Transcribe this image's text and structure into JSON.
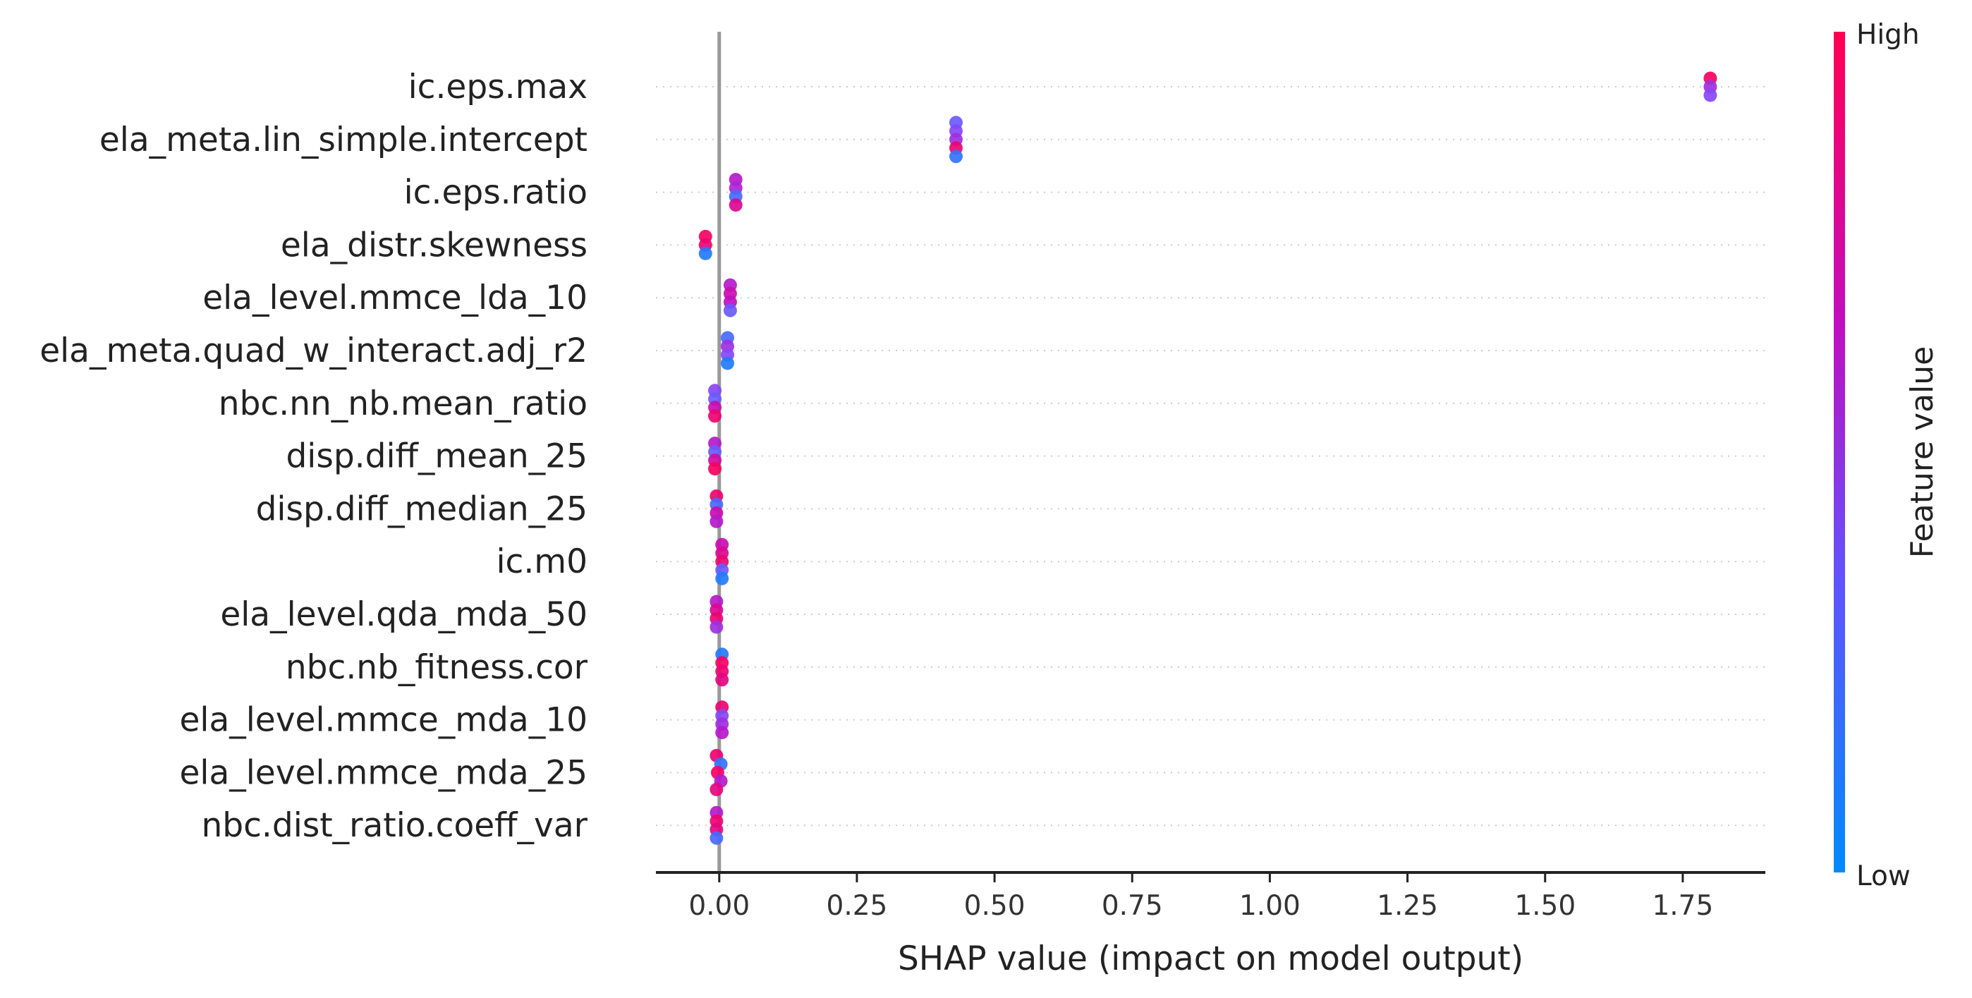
{
  "chart_data": {
    "type": "scatter",
    "xlabel": "SHAP value (impact on model output)",
    "ylabel": "",
    "xlim": [
      -0.115,
      1.9
    ],
    "x_ticks": [
      "0.00",
      "0.25",
      "0.50",
      "0.75",
      "1.00",
      "1.25",
      "1.50",
      "1.75"
    ],
    "x_tick_values": [
      0,
      0.25,
      0.5,
      0.75,
      1.0,
      1.25,
      1.5,
      1.75
    ],
    "grid": "dotted horizontal row guides",
    "zero_line": 0,
    "colorbar": {
      "title": "Feature value",
      "high_label": "High",
      "low_label": "Low",
      "colors": [
        "#008bfb",
        "#7c52ff",
        "#c10ec0",
        "#ff0052"
      ]
    },
    "features": [
      {
        "name": "ic.eps.max",
        "points": [
          {
            "x": 1.8,
            "v": 0.95
          },
          {
            "x": 1.8,
            "v": 0.5
          },
          {
            "x": 1.8,
            "v": 0.4
          }
        ]
      },
      {
        "name": "ela_meta.lin_simple.intercept",
        "points": [
          {
            "x": 0.43,
            "v": 0.3
          },
          {
            "x": 0.43,
            "v": 0.4
          },
          {
            "x": 0.43,
            "v": 0.5
          },
          {
            "x": 0.43,
            "v": 0.9
          },
          {
            "x": 0.43,
            "v": 0.15
          }
        ]
      },
      {
        "name": "ic.eps.ratio",
        "points": [
          {
            "x": 0.03,
            "v": 0.6
          },
          {
            "x": 0.03,
            "v": 0.55
          },
          {
            "x": 0.03,
            "v": 0.2
          },
          {
            "x": 0.03,
            "v": 0.8
          }
        ]
      },
      {
        "name": "ela_distr.skewness",
        "points": [
          {
            "x": -0.025,
            "v": 0.95
          },
          {
            "x": -0.025,
            "v": 0.9
          },
          {
            "x": -0.025,
            "v": 0.1
          }
        ]
      },
      {
        "name": "ela_level.mmce_lda_10",
        "points": [
          {
            "x": 0.02,
            "v": 0.6
          },
          {
            "x": 0.02,
            "v": 0.7
          },
          {
            "x": 0.02,
            "v": 0.65
          },
          {
            "x": 0.02,
            "v": 0.3
          }
        ]
      },
      {
        "name": "ela_meta.quad_w_interact.adj_r2",
        "points": [
          {
            "x": 0.015,
            "v": 0.2
          },
          {
            "x": 0.015,
            "v": 0.5
          },
          {
            "x": 0.015,
            "v": 0.4
          },
          {
            "x": 0.015,
            "v": 0.1
          }
        ]
      },
      {
        "name": "nbc.nn_nb.mean_ratio",
        "points": [
          {
            "x": -0.008,
            "v": 0.4
          },
          {
            "x": -0.008,
            "v": 0.3
          },
          {
            "x": -0.008,
            "v": 0.7
          },
          {
            "x": -0.008,
            "v": 0.9
          }
        ]
      },
      {
        "name": "disp.diff_mean_25",
        "points": [
          {
            "x": -0.008,
            "v": 0.6
          },
          {
            "x": -0.008,
            "v": 0.3
          },
          {
            "x": -0.008,
            "v": 0.75
          },
          {
            "x": -0.008,
            "v": 0.95
          }
        ]
      },
      {
        "name": "disp.diff_median_25",
        "points": [
          {
            "x": -0.005,
            "v": 0.9
          },
          {
            "x": -0.005,
            "v": 0.2
          },
          {
            "x": -0.005,
            "v": 0.7
          },
          {
            "x": -0.005,
            "v": 0.6
          }
        ]
      },
      {
        "name": "ic.m0",
        "points": [
          {
            "x": 0.005,
            "v": 0.7
          },
          {
            "x": 0.005,
            "v": 0.8
          },
          {
            "x": 0.005,
            "v": 0.9
          },
          {
            "x": 0.005,
            "v": 0.3
          },
          {
            "x": 0.005,
            "v": 0.1
          }
        ]
      },
      {
        "name": "ela_level.qda_mda_50",
        "points": [
          {
            "x": -0.005,
            "v": 0.6
          },
          {
            "x": -0.005,
            "v": 0.8
          },
          {
            "x": -0.005,
            "v": 0.9
          },
          {
            "x": -0.005,
            "v": 0.5
          }
        ]
      },
      {
        "name": "nbc.nb_fitness.cor",
        "points": [
          {
            "x": 0.005,
            "v": 0.1
          },
          {
            "x": 0.005,
            "v": 0.95
          },
          {
            "x": 0.005,
            "v": 0.9
          },
          {
            "x": 0.005,
            "v": 0.85
          }
        ]
      },
      {
        "name": "ela_level.mmce_mda_10",
        "points": [
          {
            "x": 0.005,
            "v": 0.9
          },
          {
            "x": 0.005,
            "v": 0.4
          },
          {
            "x": 0.005,
            "v": 0.5
          },
          {
            "x": 0.005,
            "v": 0.6
          }
        ]
      },
      {
        "name": "ela_level.mmce_mda_25",
        "points": [
          {
            "x": -0.005,
            "v": 0.9
          },
          {
            "x": 0.003,
            "v": 0.15
          },
          {
            "x": -0.003,
            "v": 0.95
          },
          {
            "x": 0.003,
            "v": 0.6
          },
          {
            "x": -0.005,
            "v": 0.85
          }
        ]
      },
      {
        "name": "nbc.dist_ratio.coeff_var",
        "points": [
          {
            "x": -0.005,
            "v": 0.6
          },
          {
            "x": -0.005,
            "v": 0.9
          },
          {
            "x": -0.005,
            "v": 0.85
          },
          {
            "x": -0.005,
            "v": 0.2
          }
        ]
      }
    ]
  }
}
